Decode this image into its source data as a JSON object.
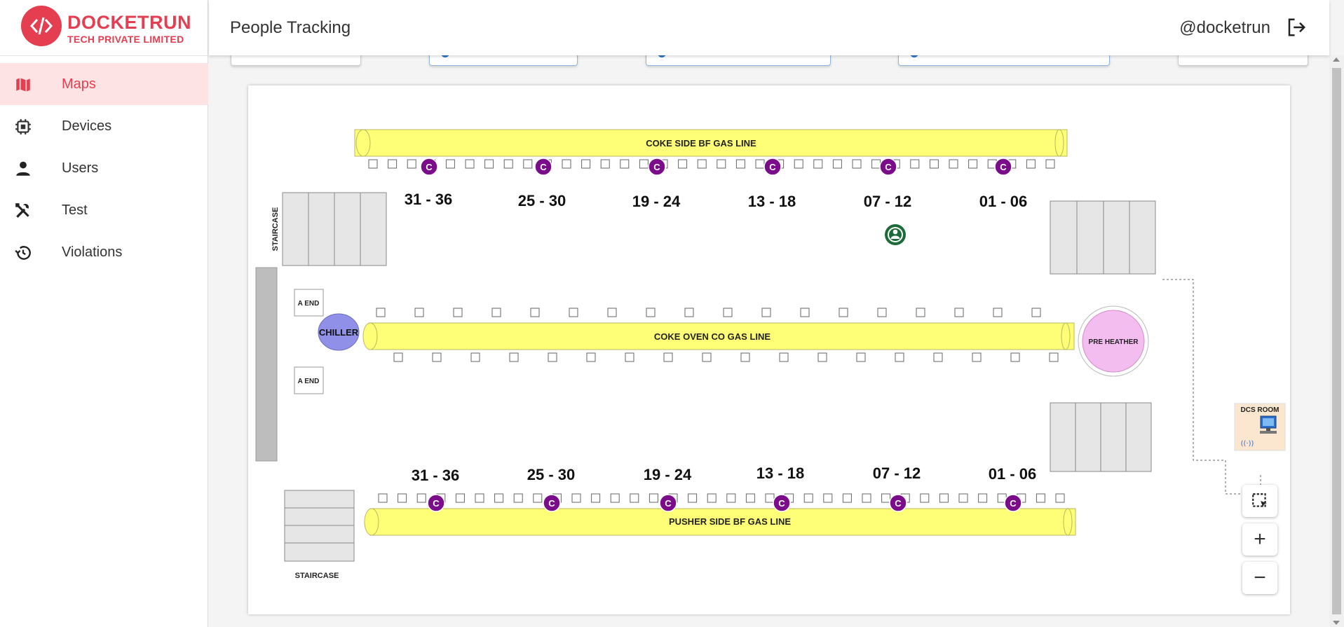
{
  "brand": {
    "name": "DOCKETRUN",
    "subtitle": "TECH PRIVATE LIMITED",
    "color": "#e53e50"
  },
  "sidebar": {
    "items": [
      {
        "label": "Maps",
        "icon": "map-icon",
        "active": true
      },
      {
        "label": "Devices",
        "icon": "chip-icon",
        "active": false
      },
      {
        "label": "Users",
        "icon": "person-icon",
        "active": false
      },
      {
        "label": "Test",
        "icon": "tools-icon",
        "active": false
      },
      {
        "label": "Violations",
        "icon": "history-icon",
        "active": false
      }
    ]
  },
  "header": {
    "title": "People Tracking",
    "user": "@docketrun",
    "logout_icon": "logout-icon"
  },
  "map": {
    "top_pipe_label": "COKE SIDE BF GAS LINE",
    "middle_pipe_label": "COKE OVEN CO GAS LINE",
    "bottom_pipe_label": "PUSHER SIDE BF GAS LINE",
    "top_sections": [
      "31 - 36",
      "25 - 30",
      "19 - 24",
      "13 - 18",
      "07 - 12",
      "01 - 06"
    ],
    "bottom_sections": [
      "31 - 36",
      "25 - 30",
      "19 - 24",
      "13 - 18",
      "07 - 12",
      "01 - 06"
    ],
    "camera_marker_label": "C",
    "staircase_left": "STAIRCASE",
    "staircase_bottom": "STAIRCASE",
    "a_end_top": "A END",
    "a_end_bottom": "A END",
    "chiller": "CHILLER",
    "pre_heater": "PRE HEATHER",
    "dcs_room": "DCS ROOM",
    "pipe_color": "#ffff77",
    "camera_color": "#7b0c8a",
    "person_color": "#1e6b3a"
  },
  "controls": {
    "select_icon": "select-area-icon",
    "zoom_in": "+",
    "zoom_out": "−"
  }
}
